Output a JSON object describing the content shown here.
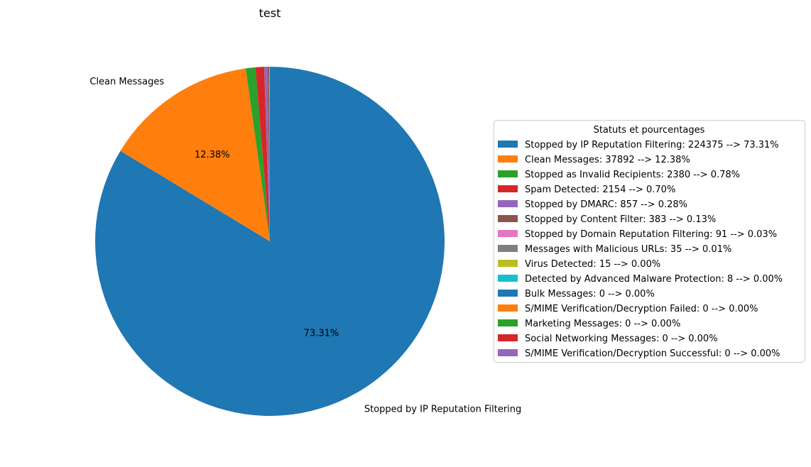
{
  "chart_data": {
    "type": "pie",
    "title": "test",
    "legend_title": "Statuts et pourcentages",
    "legend_location": "center-right",
    "start_angle_deg": 90,
    "direction": "clockwise",
    "colors": [
      "#1f77b4",
      "#ff7f0e",
      "#2ca02c",
      "#d62728",
      "#9467bd",
      "#8c564b",
      "#e377c2",
      "#7f7f7f",
      "#bcbd22",
      "#17becf",
      "#1f77b4",
      "#ff7f0e",
      "#2ca02c",
      "#d62728",
      "#9467bd"
    ],
    "slices": [
      {
        "label": "Stopped by IP Reputation Filtering",
        "value": 224375,
        "percent": 73.31,
        "legend": "Stopped by IP Reputation Filtering: 224375 --> 73.31%",
        "outer_label": "Stopped by IP Reputation Filtering",
        "pct_label": "73.31%"
      },
      {
        "label": "Clean Messages",
        "value": 37892,
        "percent": 12.38,
        "legend": "Clean Messages: 37892 --> 12.38%",
        "outer_label": "Clean Messages",
        "pct_label": "12.38%"
      },
      {
        "label": "Stopped as Invalid Recipients",
        "value": 2380,
        "percent": 0.78,
        "legend": "Stopped as Invalid Recipients: 2380 --> 0.78%",
        "outer_label": "",
        "pct_label": ""
      },
      {
        "label": "Spam Detected",
        "value": 2154,
        "percent": 0.7,
        "legend": "Spam Detected: 2154 --> 0.70%",
        "outer_label": "",
        "pct_label": ""
      },
      {
        "label": "Stopped by DMARC",
        "value": 857,
        "percent": 0.28,
        "legend": "Stopped by DMARC: 857 --> 0.28%",
        "outer_label": "",
        "pct_label": ""
      },
      {
        "label": "Stopped by Content Filter",
        "value": 383,
        "percent": 0.13,
        "legend": "Stopped by Content Filter: 383 --> 0.13%",
        "outer_label": "",
        "pct_label": ""
      },
      {
        "label": "Stopped by Domain Reputation Filtering",
        "value": 91,
        "percent": 0.03,
        "legend": "Stopped by Domain Reputation Filtering: 91 --> 0.03%",
        "outer_label": "",
        "pct_label": ""
      },
      {
        "label": "Messages with Malicious URLs",
        "value": 35,
        "percent": 0.01,
        "legend": "Messages with Malicious URLs: 35 --> 0.01%",
        "outer_label": "",
        "pct_label": ""
      },
      {
        "label": "Virus Detected",
        "value": 15,
        "percent": 0.0,
        "legend": "Virus Detected: 15 --> 0.00%",
        "outer_label": "",
        "pct_label": ""
      },
      {
        "label": "Detected by Advanced Malware Protection",
        "value": 8,
        "percent": 0.0,
        "legend": "Detected by Advanced Malware Protection: 8 --> 0.00%",
        "outer_label": "",
        "pct_label": ""
      },
      {
        "label": "Bulk Messages",
        "value": 0,
        "percent": 0.0,
        "legend": "Bulk Messages: 0 --> 0.00%",
        "outer_label": "",
        "pct_label": ""
      },
      {
        "label": "S/MIME Verification/Decryption Failed",
        "value": 0,
        "percent": 0.0,
        "legend": "S/MIME Verification/Decryption Failed: 0 --> 0.00%",
        "outer_label": "",
        "pct_label": ""
      },
      {
        "label": "Marketing Messages",
        "value": 0,
        "percent": 0.0,
        "legend": "Marketing Messages: 0 --> 0.00%",
        "outer_label": "",
        "pct_label": ""
      },
      {
        "label": "Social Networking Messages",
        "value": 0,
        "percent": 0.0,
        "legend": "Social Networking Messages: 0 --> 0.00%",
        "outer_label": "",
        "pct_label": ""
      },
      {
        "label": "S/MIME Verification/Decryption Successful",
        "value": 0,
        "percent": 0.0,
        "legend": "S/MIME Verification/Decryption Successful: 0 --> 0.00%",
        "outer_label": "",
        "pct_label": ""
      }
    ]
  }
}
